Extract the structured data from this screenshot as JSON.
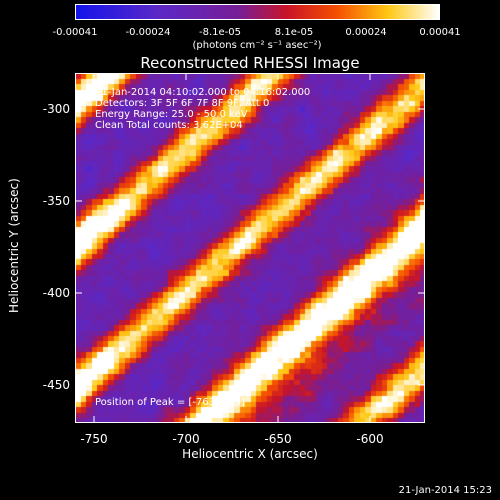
{
  "colorbar": {
    "ticks": [
      "-0.00041",
      "-0.00024",
      "-8.1e-05",
      "8.1e-05",
      "0.00024",
      "0.00041"
    ],
    "units": "(photons cm⁻² s⁻¹ asec⁻²)"
  },
  "title": "Reconstructed RHESSI Image",
  "annotations": {
    "time": "21-Jan-2014 04:10:02.000 to 04:16:02.000",
    "detectors": "Detectors: 3F 5F 6F 7F 8F 9F, Att 0",
    "energy": "Energy Range: 25.0 - 50.0 keV",
    "clean": "Clean    Total counts: 3.62E+04",
    "peak": "Position of Peak = [-763,-369]"
  },
  "axes": {
    "xlabel": "Heliocentric X (arcsec)",
    "ylabel": "Heliocentric Y (arcsec)",
    "xticks": [
      "-750",
      "-700",
      "-650",
      "-600"
    ],
    "yticks": [
      "-300",
      "-350",
      "-400",
      "-450"
    ]
  },
  "footer": "21-Jan-2014 15:23"
}
